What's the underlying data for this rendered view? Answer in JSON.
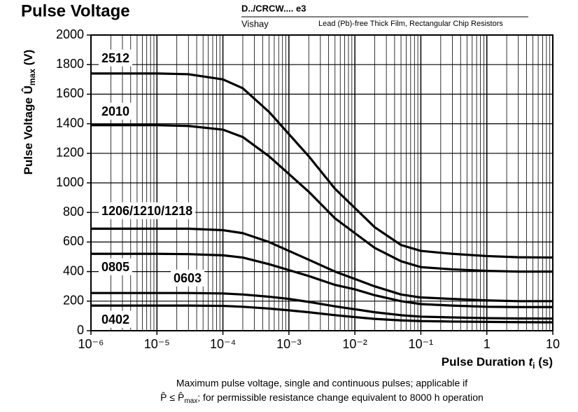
{
  "header": {
    "doc": "D../CRCW.... e3",
    "company": "Vishay",
    "description": "Lead (Pb)-free Thick Film, Rectangular Chip Resistors"
  },
  "chart_data": {
    "type": "line",
    "title": "Pulse Voltage",
    "ylabel": {
      "text": "Pulse Voltage Û",
      "sub": "max",
      "unit": " (V)"
    },
    "xlabel": {
      "text": "Pulse Duration ",
      "var": "t",
      "sub": "i",
      "unit": " (s)"
    },
    "xscale": "log",
    "grid": true,
    "color": "#000000",
    "x": [
      1e-06,
      1e-05,
      3e-05,
      0.0001,
      0.0002,
      0.0005,
      0.001,
      0.002,
      0.005,
      0.01,
      0.02,
      0.05,
      0.1,
      0.3,
      1,
      3,
      10
    ],
    "series": [
      {
        "name": "2512",
        "color": "#000000",
        "values": [
          1740,
          1740,
          1735,
          1700,
          1640,
          1480,
          1330,
          1180,
          960,
          830,
          700,
          580,
          540,
          520,
          505,
          497,
          495
        ]
      },
      {
        "name": "2010",
        "color": "#000000",
        "values": [
          1390,
          1390,
          1385,
          1360,
          1310,
          1180,
          1060,
          940,
          760,
          660,
          560,
          470,
          430,
          415,
          405,
          400,
          400
        ]
      },
      {
        "name": "1206/1210/1218",
        "color": "#000000",
        "values": [
          690,
          690,
          690,
          680,
          660,
          600,
          540,
          480,
          400,
          350,
          300,
          245,
          225,
          215,
          205,
          200,
          200
        ]
      },
      {
        "name": "0805",
        "color": "#000000",
        "values": [
          520,
          520,
          518,
          510,
          495,
          450,
          410,
          370,
          310,
          280,
          240,
          200,
          180,
          170,
          162,
          160,
          160
        ]
      },
      {
        "name": "0603",
        "color": "#000000",
        "values": [
          255,
          255,
          255,
          252,
          245,
          230,
          215,
          195,
          165,
          145,
          125,
          105,
          95,
          90,
          85,
          83,
          82
        ]
      },
      {
        "name": "0402",
        "color": "#000000",
        "values": [
          170,
          170,
          170,
          168,
          162,
          150,
          138,
          125,
          105,
          92,
          80,
          70,
          65,
          62,
          60,
          58,
          57
        ]
      }
    ],
    "xlim": [
      1e-06,
      10
    ],
    "xticks": [
      {
        "value": 1e-06,
        "label": "10⁻⁶"
      },
      {
        "value": 1e-05,
        "label": "10⁻⁵"
      },
      {
        "value": 0.0001,
        "label": "10⁻⁴"
      },
      {
        "value": 0.001,
        "label": "10⁻³"
      },
      {
        "value": 0.01,
        "label": "10⁻²"
      },
      {
        "value": 0.1,
        "label": "10⁻¹"
      },
      1,
      10
    ],
    "ylim": [
      0,
      2000
    ],
    "yticks": [
      0,
      200,
      400,
      600,
      800,
      1000,
      1200,
      1400,
      1600,
      1800,
      2000
    ],
    "caption": {
      "line1": "Maximum pulse voltage, single and continuous pulses; applicable if",
      "line2a": "P̂ ≤ P̂",
      "line2sub": "max",
      "line2b": "; for permissible resistance change equivalent to 8000 h operation"
    }
  }
}
